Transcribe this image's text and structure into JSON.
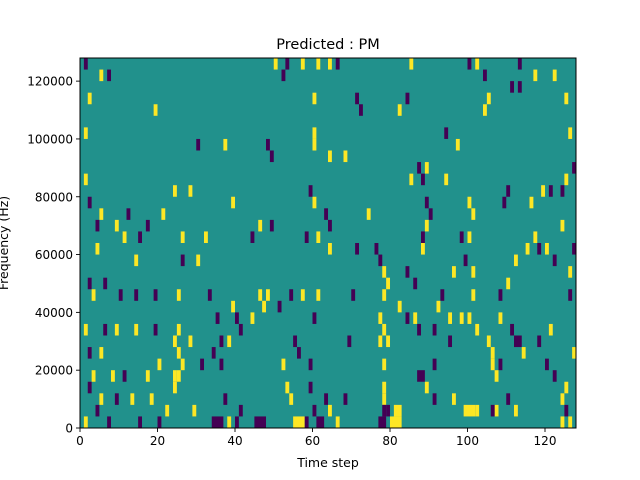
{
  "chart_data": {
    "type": "heatmap",
    "title": "Predicted : PM",
    "xlabel": "Time step",
    "ylabel": "Frequency (Hz)",
    "xlim": [
      0,
      128
    ],
    "ylim": [
      0,
      128000
    ],
    "x_ticks": [
      0,
      20,
      40,
      60,
      80,
      100,
      120
    ],
    "y_ticks": [
      0,
      20000,
      40000,
      60000,
      80000,
      100000,
      120000
    ],
    "x_tick_labels": [
      "0",
      "20",
      "40",
      "60",
      "80",
      "100",
      "120"
    ],
    "y_tick_labels": [
      "0",
      "20000",
      "40000",
      "60000",
      "80000",
      "100000",
      "120000"
    ],
    "grid": false,
    "colormap": "viridis",
    "value_levels": {
      "low": -1,
      "mid": 0,
      "high": 1
    },
    "colors": {
      "low": "#440154",
      "mid": "#21918c",
      "high": "#fde725"
    },
    "cell_size": {
      "time": 1,
      "frequency": 4000
    },
    "cells_note": "each entry: [time_start, freq_bin_start_hz, width_steps, value]",
    "cells": [
      [
        1,
        124000,
        1,
        -1
      ],
      [
        5,
        120000,
        1,
        1
      ],
      [
        7,
        120000,
        1,
        -1
      ],
      [
        2,
        112000,
        1,
        1
      ],
      [
        19,
        108000,
        1,
        1
      ],
      [
        1,
        100000,
        1,
        1
      ],
      [
        30,
        96000,
        1,
        -1
      ],
      [
        37,
        96000,
        1,
        1
      ],
      [
        48,
        96000,
        1,
        -1
      ],
      [
        49,
        92000,
        1,
        -1
      ],
      [
        1,
        84000,
        1,
        1
      ],
      [
        2,
        76000,
        1,
        -1
      ],
      [
        24,
        80000,
        1,
        1
      ],
      [
        28,
        80000,
        1,
        1
      ],
      [
        39,
        76000,
        1,
        1
      ],
      [
        5,
        72000,
        1,
        1
      ],
      [
        12,
        72000,
        1,
        -1
      ],
      [
        21,
        72000,
        1,
        1
      ],
      [
        4,
        68000,
        1,
        -1
      ],
      [
        9,
        68000,
        1,
        1
      ],
      [
        17,
        68000,
        1,
        -1
      ],
      [
        11,
        64000,
        1,
        1
      ],
      [
        15,
        64000,
        1,
        -1
      ],
      [
        26,
        64000,
        1,
        1
      ],
      [
        32,
        64000,
        1,
        1
      ],
      [
        44,
        64000,
        1,
        -1
      ],
      [
        46,
        68000,
        1,
        1
      ],
      [
        49,
        68000,
        1,
        -1
      ],
      [
        4,
        60000,
        1,
        1
      ],
      [
        14,
        56000,
        1,
        1
      ],
      [
        26,
        56000,
        1,
        -1
      ],
      [
        30,
        56000,
        1,
        1
      ],
      [
        2,
        48000,
        1,
        -1
      ],
      [
        6,
        48000,
        1,
        -1
      ],
      [
        3,
        44000,
        1,
        1
      ],
      [
        10,
        44000,
        1,
        -1
      ],
      [
        14,
        44000,
        1,
        -1
      ],
      [
        19,
        44000,
        1,
        -1
      ],
      [
        25,
        44000,
        1,
        1
      ],
      [
        33,
        44000,
        1,
        -1
      ],
      [
        47,
        40000,
        1,
        1
      ],
      [
        51,
        40000,
        1,
        -1
      ],
      [
        35,
        36000,
        1,
        -1
      ],
      [
        44,
        36000,
        1,
        1
      ],
      [
        1,
        32000,
        1,
        1
      ],
      [
        6,
        32000,
        1,
        -1
      ],
      [
        9,
        32000,
        1,
        1
      ],
      [
        14,
        32000,
        1,
        1
      ],
      [
        19,
        32000,
        1,
        -1
      ],
      [
        28,
        28000,
        1,
        1
      ],
      [
        36,
        28000,
        1,
        -1
      ],
      [
        2,
        24000,
        1,
        -1
      ],
      [
        5,
        24000,
        1,
        1
      ],
      [
        20,
        20000,
        1,
        1
      ],
      [
        26,
        20000,
        1,
        1
      ],
      [
        31,
        20000,
        1,
        -1
      ],
      [
        36,
        20000,
        1,
        -1
      ],
      [
        3,
        16000,
        1,
        1
      ],
      [
        8,
        16000,
        1,
        1
      ],
      [
        11,
        16000,
        1,
        -1
      ],
      [
        17,
        16000,
        1,
        1
      ],
      [
        24,
        16000,
        1,
        1
      ],
      [
        2,
        12000,
        1,
        -1
      ],
      [
        5,
        8000,
        1,
        1
      ],
      [
        9,
        8000,
        1,
        -1
      ],
      [
        13,
        8000,
        1,
        1
      ],
      [
        18,
        8000,
        1,
        1
      ],
      [
        22,
        4000,
        1,
        1
      ],
      [
        29,
        4000,
        1,
        1
      ],
      [
        1,
        0,
        1,
        1
      ],
      [
        4,
        4000,
        1,
        -1
      ],
      [
        7,
        0,
        1,
        -1
      ],
      [
        15,
        0,
        1,
        -1
      ],
      [
        20,
        0,
        1,
        -1
      ],
      [
        34,
        0,
        3,
        -1
      ],
      [
        38,
        0,
        1,
        1
      ],
      [
        40,
        0,
        1,
        -1
      ],
      [
        45,
        0,
        3,
        -1
      ],
      [
        41,
        4000,
        1,
        -1
      ],
      [
        37,
        8000,
        1,
        -1
      ],
      [
        24,
        28000,
        1,
        1
      ],
      [
        25,
        32000,
        1,
        1
      ],
      [
        25,
        24000,
        1,
        1
      ],
      [
        25,
        16000,
        1,
        1
      ],
      [
        24,
        12000,
        1,
        1
      ],
      [
        34,
        24000,
        1,
        -1
      ],
      [
        38,
        28000,
        1,
        1
      ],
      [
        41,
        32000,
        1,
        -1
      ],
      [
        39,
        40000,
        1,
        1
      ],
      [
        40,
        36000,
        1,
        -1
      ],
      [
        46,
        44000,
        1,
        1
      ],
      [
        48,
        44000,
        1,
        1
      ],
      [
        53,
        124000,
        1,
        -1
      ],
      [
        57,
        124000,
        1,
        1
      ],
      [
        50,
        124000,
        1,
        1
      ],
      [
        61,
        124000,
        1,
        1
      ],
      [
        64,
        124000,
        1,
        1
      ],
      [
        66,
        124000,
        1,
        -1
      ],
      [
        52,
        120000,
        1,
        -1
      ],
      [
        60,
        112000,
        1,
        1
      ],
      [
        71,
        112000,
        1,
        -1
      ],
      [
        72,
        108000,
        1,
        -1
      ],
      [
        60,
        100000,
        1,
        1
      ],
      [
        60,
        96000,
        1,
        1
      ],
      [
        64,
        92000,
        1,
        1
      ],
      [
        68,
        92000,
        1,
        1
      ],
      [
        59,
        80000,
        1,
        -1
      ],
      [
        60,
        76000,
        1,
        1
      ],
      [
        63,
        72000,
        1,
        -1
      ],
      [
        64,
        68000,
        1,
        -1
      ],
      [
        61,
        64000,
        1,
        1
      ],
      [
        58,
        64000,
        1,
        -1
      ],
      [
        64,
        60000,
        1,
        1
      ],
      [
        71,
        60000,
        1,
        -1
      ],
      [
        54,
        44000,
        1,
        -1
      ],
      [
        57,
        44000,
        1,
        1
      ],
      [
        61,
        44000,
        1,
        1
      ],
      [
        70,
        44000,
        1,
        -1
      ],
      [
        60,
        36000,
        1,
        -1
      ],
      [
        69,
        28000,
        1,
        -1
      ],
      [
        55,
        28000,
        1,
        -1
      ],
      [
        56,
        24000,
        1,
        -1
      ],
      [
        59,
        20000,
        1,
        -1
      ],
      [
        52,
        20000,
        1,
        1
      ],
      [
        53,
        12000,
        1,
        1
      ],
      [
        54,
        8000,
        1,
        1
      ],
      [
        59,
        12000,
        1,
        -1
      ],
      [
        60,
        4000,
        1,
        -1
      ],
      [
        63,
        8000,
        1,
        -1
      ],
      [
        68,
        8000,
        1,
        -1
      ],
      [
        64,
        4000,
        1,
        1
      ],
      [
        55,
        0,
        3,
        1
      ],
      [
        58,
        0,
        1,
        -1
      ],
      [
        61,
        0,
        2,
        -1
      ],
      [
        66,
        0,
        1,
        1
      ],
      [
        74,
        72000,
        1,
        1
      ],
      [
        76,
        60000,
        1,
        -1
      ],
      [
        77,
        56000,
        1,
        -1
      ],
      [
        78,
        52000,
        1,
        1
      ],
      [
        78,
        44000,
        1,
        1
      ],
      [
        79,
        48000,
        1,
        1
      ],
      [
        77,
        36000,
        1,
        1
      ],
      [
        78,
        32000,
        1,
        1
      ],
      [
        77,
        28000,
        1,
        1
      ],
      [
        79,
        28000,
        1,
        1
      ],
      [
        78,
        20000,
        1,
        1
      ],
      [
        78,
        12000,
        1,
        1
      ],
      [
        78,
        8000,
        1,
        1
      ],
      [
        77,
        0,
        2,
        -1
      ],
      [
        80,
        0,
        3,
        1
      ],
      [
        78,
        4000,
        1,
        -1
      ],
      [
        79,
        4000,
        1,
        -1
      ],
      [
        81,
        4000,
        2,
        1
      ],
      [
        82,
        108000,
        1,
        1
      ],
      [
        84,
        112000,
        1,
        -1
      ],
      [
        85,
        124000,
        1,
        1
      ],
      [
        87,
        88000,
        1,
        -1
      ],
      [
        89,
        88000,
        1,
        1
      ],
      [
        85,
        84000,
        1,
        1
      ],
      [
        88,
        84000,
        1,
        -1
      ],
      [
        94,
        84000,
        1,
        1
      ],
      [
        89,
        76000,
        1,
        -1
      ],
      [
        90,
        72000,
        1,
        -1
      ],
      [
        88,
        64000,
        1,
        -1
      ],
      [
        88,
        60000,
        1,
        1
      ],
      [
        84,
        52000,
        1,
        -1
      ],
      [
        89,
        68000,
        1,
        1
      ],
      [
        82,
        40000,
        1,
        1
      ],
      [
        84,
        36000,
        1,
        -1
      ],
      [
        86,
        48000,
        1,
        -1
      ],
      [
        86,
        36000,
        1,
        1
      ],
      [
        87,
        32000,
        1,
        -1
      ],
      [
        92,
        40000,
        1,
        1
      ],
      [
        93,
        44000,
        1,
        -1
      ],
      [
        95,
        36000,
        1,
        1
      ],
      [
        91,
        32000,
        1,
        -1
      ],
      [
        95,
        28000,
        1,
        -1
      ],
      [
        91,
        20000,
        1,
        -1
      ],
      [
        87,
        16000,
        1,
        -1
      ],
      [
        88,
        16000,
        1,
        -1
      ],
      [
        89,
        12000,
        1,
        1
      ],
      [
        91,
        8000,
        1,
        -1
      ],
      [
        94,
        100000,
        1,
        -1
      ],
      [
        97,
        96000,
        1,
        1
      ],
      [
        100,
        76000,
        1,
        1
      ],
      [
        101,
        72000,
        1,
        1
      ],
      [
        98,
        64000,
        1,
        -1
      ],
      [
        100,
        64000,
        1,
        1
      ],
      [
        96,
        52000,
        1,
        1
      ],
      [
        99,
        56000,
        1,
        -1
      ],
      [
        101,
        52000,
        1,
        1
      ],
      [
        101,
        44000,
        1,
        1
      ],
      [
        98,
        36000,
        1,
        1
      ],
      [
        100,
        36000,
        1,
        1
      ],
      [
        102,
        32000,
        1,
        1
      ],
      [
        105,
        28000,
        1,
        1
      ],
      [
        106,
        24000,
        1,
        1
      ],
      [
        106,
        20000,
        1,
        1
      ],
      [
        107,
        16000,
        1,
        1
      ],
      [
        108,
        20000,
        1,
        -1
      ],
      [
        96,
        8000,
        1,
        1
      ],
      [
        99,
        4000,
        3,
        1
      ],
      [
        102,
        4000,
        1,
        1
      ],
      [
        107,
        4000,
        1,
        1
      ],
      [
        110,
        8000,
        1,
        -1
      ],
      [
        112,
        4000,
        1,
        1
      ],
      [
        106,
        4000,
        1,
        -1
      ],
      [
        108,
        36000,
        1,
        1
      ],
      [
        111,
        32000,
        1,
        -1
      ],
      [
        112,
        28000,
        2,
        -1
      ],
      [
        114,
        24000,
        1,
        1
      ],
      [
        108,
        44000,
        1,
        -1
      ],
      [
        110,
        48000,
        1,
        1
      ],
      [
        112,
        56000,
        1,
        1
      ],
      [
        115,
        60000,
        1,
        1
      ],
      [
        118,
        60000,
        1,
        -1
      ],
      [
        117,
        64000,
        1,
        1
      ],
      [
        120,
        60000,
        1,
        1
      ],
      [
        122,
        56000,
        1,
        -1
      ],
      [
        124,
        68000,
        1,
        1
      ],
      [
        116,
        76000,
        1,
        1
      ],
      [
        119,
        80000,
        1,
        1
      ],
      [
        121,
        80000,
        1,
        -1
      ],
      [
        124,
        80000,
        1,
        -1
      ],
      [
        125,
        84000,
        1,
        1
      ],
      [
        126,
        100000,
        1,
        1
      ],
      [
        125,
        112000,
        1,
        1
      ],
      [
        122,
        120000,
        1,
        1
      ],
      [
        113,
        124000,
        1,
        -1
      ],
      [
        117,
        120000,
        1,
        1
      ],
      [
        113,
        116000,
        1,
        -1
      ],
      [
        111,
        116000,
        1,
        -1
      ],
      [
        104,
        120000,
        1,
        -1
      ],
      [
        105,
        112000,
        1,
        1
      ],
      [
        104,
        108000,
        1,
        1
      ],
      [
        100,
        124000,
        1,
        -1
      ],
      [
        102,
        124000,
        1,
        1
      ],
      [
        109,
        76000,
        1,
        -1
      ],
      [
        110,
        80000,
        1,
        -1
      ],
      [
        118,
        28000,
        1,
        -1
      ],
      [
        121,
        32000,
        1,
        1
      ],
      [
        120,
        20000,
        1,
        -1
      ],
      [
        122,
        16000,
        1,
        -1
      ],
      [
        125,
        12000,
        1,
        1
      ],
      [
        124,
        8000,
        1,
        1
      ],
      [
        125,
        4000,
        1,
        -1
      ],
      [
        124,
        0,
        1,
        1
      ],
      [
        126,
        0,
        1,
        1
      ],
      [
        127,
        60000,
        1,
        -1
      ],
      [
        127,
        88000,
        1,
        -1
      ],
      [
        126,
        44000,
        1,
        -1
      ],
      [
        126,
        52000,
        1,
        1
      ],
      [
        127,
        24000,
        1,
        1
      ]
    ]
  }
}
